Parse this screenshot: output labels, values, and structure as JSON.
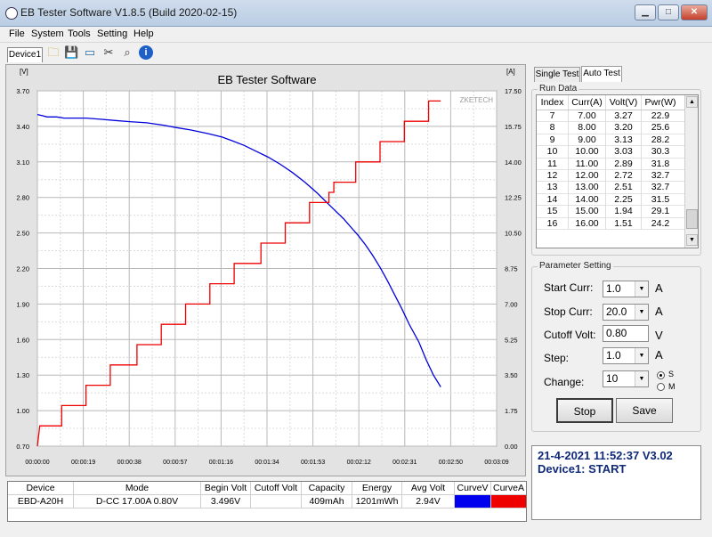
{
  "window": {
    "title": "EB Tester Software V1.8.5 (Build 2020-02-15)",
    "min_label": "▁",
    "max_label": "□",
    "close_label": "✕"
  },
  "menu": [
    "File",
    "System",
    "Tools",
    "Setting",
    "Help"
  ],
  "toolbar": {
    "device_tab": "Device1"
  },
  "chart_data": {
    "type": "line",
    "title": "EB Tester Software",
    "watermark": "ZKETECH",
    "y_left_unit": "[V]",
    "y_right_unit": "[A]",
    "y_left_ticks": [
      "3.70",
      "3.40",
      "3.10",
      "2.80",
      "2.50",
      "2.20",
      "1.90",
      "1.60",
      "1.30",
      "1.00",
      "0.70"
    ],
    "y_right_ticks": [
      "17.50",
      "15.75",
      "14.00",
      "12.25",
      "10.50",
      "8.75",
      "7.00",
      "5.25",
      "3.50",
      "1.75",
      "0.00"
    ],
    "x_ticks": [
      "00:00:00",
      "00:00:19",
      "00:00:38",
      "00:00:57",
      "00:01:16",
      "00:01:34",
      "00:01:53",
      "00:02:12",
      "00:02:31",
      "00:02:50",
      "00:03:09"
    ],
    "ylim_left": [
      0.7,
      3.7
    ],
    "ylim_right": [
      0.0,
      17.5
    ],
    "xlim_seconds": [
      0,
      189
    ],
    "grid": true,
    "series": [
      {
        "name": "CurveV",
        "color": "#0000dd",
        "axis": "left",
        "points": [
          [
            0,
            3.5
          ],
          [
            2,
            3.49
          ],
          [
            4,
            3.48
          ],
          [
            8,
            3.48
          ],
          [
            11,
            3.47
          ],
          [
            20,
            3.47
          ],
          [
            26,
            3.46
          ],
          [
            32,
            3.45
          ],
          [
            38,
            3.44
          ],
          [
            45,
            3.43
          ],
          [
            52,
            3.41
          ],
          [
            57,
            3.39
          ],
          [
            63,
            3.37
          ],
          [
            70,
            3.34
          ],
          [
            76,
            3.31
          ],
          [
            80,
            3.28
          ],
          [
            85,
            3.24
          ],
          [
            90,
            3.19
          ],
          [
            95,
            3.14
          ],
          [
            100,
            3.08
          ],
          [
            105,
            3.01
          ],
          [
            110,
            2.93
          ],
          [
            115,
            2.84
          ],
          [
            120,
            2.74
          ],
          [
            123,
            2.68
          ],
          [
            126,
            2.62
          ],
          [
            129,
            2.55
          ],
          [
            132,
            2.48
          ],
          [
            135,
            2.4
          ],
          [
            138,
            2.31
          ],
          [
            141,
            2.21
          ],
          [
            144,
            2.1
          ],
          [
            147,
            1.98
          ],
          [
            150,
            1.86
          ],
          [
            153,
            1.73
          ],
          [
            157,
            1.58
          ],
          [
            160,
            1.43
          ],
          [
            163,
            1.3
          ],
          [
            166,
            1.2
          ]
        ]
      },
      {
        "name": "CurveA",
        "color": "#ee0000",
        "axis": "right",
        "points": [
          [
            0,
            0.0
          ],
          [
            1,
            1.0
          ],
          [
            10,
            1.0
          ],
          [
            10,
            2.0
          ],
          [
            20,
            2.0
          ],
          [
            20,
            3.0
          ],
          [
            30,
            3.0
          ],
          [
            30,
            4.0
          ],
          [
            41,
            4.0
          ],
          [
            41,
            5.0
          ],
          [
            51,
            5.0
          ],
          [
            51,
            6.0
          ],
          [
            61,
            6.0
          ],
          [
            61,
            7.0
          ],
          [
            71,
            7.0
          ],
          [
            71,
            8.0
          ],
          [
            81,
            8.0
          ],
          [
            81,
            9.0
          ],
          [
            92,
            9.0
          ],
          [
            92,
            10.0
          ],
          [
            102,
            10.0
          ],
          [
            102,
            11.0
          ],
          [
            112,
            11.0
          ],
          [
            112,
            12.0
          ],
          [
            120,
            12.0
          ],
          [
            120,
            12.5
          ],
          [
            122,
            12.5
          ],
          [
            122,
            13.0
          ],
          [
            131,
            13.0
          ],
          [
            131,
            14.0
          ],
          [
            141,
            14.0
          ],
          [
            141,
            15.0
          ],
          [
            151,
            15.0
          ],
          [
            151,
            16.0
          ],
          [
            161,
            16.0
          ],
          [
            161,
            17.0
          ],
          [
            166,
            17.0
          ]
        ]
      }
    ]
  },
  "right_panel": {
    "tabs": [
      "Single Test",
      "Auto Test"
    ],
    "active_tab": "Auto Test",
    "run_data": {
      "legend": "Run Data",
      "columns": [
        "Index",
        "Curr(A)",
        "Volt(V)",
        "Pwr(W)"
      ],
      "rows": [
        [
          "7",
          "7.00",
          "3.27",
          "22.9"
        ],
        [
          "8",
          "8.00",
          "3.20",
          "25.6"
        ],
        [
          "9",
          "9.00",
          "3.13",
          "28.2"
        ],
        [
          "10",
          "10.00",
          "3.03",
          "30.3"
        ],
        [
          "11",
          "11.00",
          "2.89",
          "31.8"
        ],
        [
          "12",
          "12.00",
          "2.72",
          "32.7"
        ],
        [
          "13",
          "13.00",
          "2.51",
          "32.7"
        ],
        [
          "14",
          "14.00",
          "2.25",
          "31.5"
        ],
        [
          "15",
          "15.00",
          "1.94",
          "29.1"
        ],
        [
          "16",
          "16.00",
          "1.51",
          "24.2"
        ]
      ]
    },
    "params": {
      "legend": "Parameter Setting",
      "start_label": "Start Curr:",
      "start_value": "1.0",
      "start_unit": "A",
      "stop_label": "Stop Curr:",
      "stop_value": "20.0",
      "stop_unit": "A",
      "cutoff_label": "Cutoff Volt:",
      "cutoff_value": "0.80",
      "cutoff_unit": "V",
      "step_label": "Step:",
      "step_value": "1.0",
      "step_unit": "A",
      "change_label": "Change:",
      "change_value": "10",
      "radio_s": "S",
      "radio_m": "M",
      "selected": "S",
      "stop_button": "Stop",
      "save_button": "Save"
    },
    "status": {
      "line1": "21-4-2021 11:52:37  V3.02",
      "line2": "Device1: START"
    }
  },
  "summary_table": {
    "columns": [
      "Device",
      "Mode",
      "Begin Volt",
      "Cutoff Volt",
      "Capacity",
      "Energy",
      "Avg Volt",
      "CurveV",
      "CurveA"
    ],
    "row": [
      "EBD-A20H",
      "D-CC  17.00A  0.80V",
      "3.496V",
      "",
      "409mAh",
      "1201mWh",
      "2.94V",
      "",
      ""
    ],
    "curve_v_color": "#0000ee",
    "curve_a_color": "#ee0000"
  }
}
